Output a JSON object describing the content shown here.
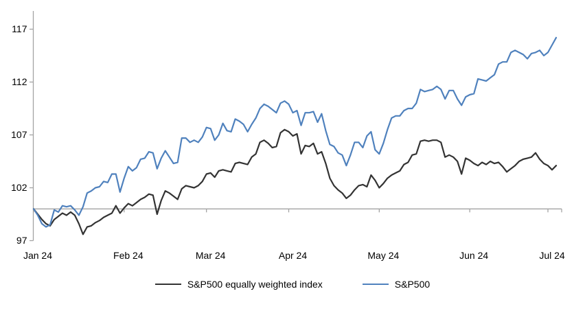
{
  "chart_data": {
    "type": "line",
    "title": "",
    "x_tick_labels": [
      "Jan 24",
      "Feb 24",
      "Mar 24",
      "Apr 24",
      "May 24",
      "Jun 24",
      "Jul 24"
    ],
    "month_tick_indices": [
      0,
      22,
      42,
      62,
      84,
      106,
      125
    ],
    "y_ticks": [
      97,
      102,
      107,
      112,
      117
    ],
    "ylim": [
      97,
      118.8
    ],
    "baseline_value": 100,
    "grid": "off",
    "legend_position": "bottom",
    "axis_color": "#a3a3a3",
    "text_color": "#000000",
    "series": [
      {
        "name": "S&P500 equally weighted index",
        "color": "#333333",
        "values": [
          100,
          99.5,
          99.0,
          98.6,
          98.4,
          99.0,
          99.3,
          99.6,
          99.4,
          99.7,
          99.4,
          98.6,
          97.6,
          98.3,
          98.4,
          98.7,
          98.9,
          99.2,
          99.4,
          99.6,
          100.3,
          99.6,
          100.1,
          100.5,
          100.3,
          100.6,
          100.9,
          101.1,
          101.4,
          101.3,
          99.5,
          100.8,
          101.7,
          101.5,
          101.2,
          100.9,
          101.9,
          102.2,
          102.1,
          102.0,
          102.2,
          102.6,
          103.3,
          103.4,
          103.0,
          103.6,
          103.7,
          103.6,
          103.5,
          104.3,
          104.4,
          104.3,
          104.2,
          104.9,
          105.2,
          106.3,
          106.5,
          106.2,
          105.8,
          105.9,
          107.2,
          107.5,
          107.3,
          106.9,
          107.1,
          105.2,
          106.0,
          105.9,
          106.2,
          105.2,
          105.4,
          104.3,
          102.9,
          102.2,
          101.8,
          101.5,
          101.0,
          101.3,
          101.8,
          102.2,
          102.3,
          102.1,
          103.2,
          102.7,
          102.0,
          102.4,
          102.9,
          103.2,
          103.4,
          103.6,
          104.2,
          104.4,
          105.1,
          105.2,
          106.4,
          106.5,
          106.4,
          106.5,
          106.5,
          106.3,
          104.9,
          105.1,
          104.9,
          104.5,
          103.3,
          104.8,
          104.6,
          104.3,
          104.1,
          104.4,
          104.2,
          104.5,
          104.3,
          104.4,
          104.0,
          103.5,
          103.8,
          104.1,
          104.5,
          104.7,
          104.8,
          104.9,
          105.3,
          104.7,
          104.3,
          104.1,
          103.7,
          104.1
        ]
      },
      {
        "name": "S&P500",
        "color": "#4f81bd",
        "values": [
          100,
          99.4,
          98.6,
          98.3,
          98.5,
          99.9,
          99.7,
          100.3,
          100.2,
          100.3,
          99.9,
          99.4,
          100.2,
          101.5,
          101.7,
          102.0,
          102.1,
          102.6,
          102.5,
          103.3,
          103.3,
          101.6,
          102.9,
          104.0,
          103.6,
          103.9,
          104.7,
          104.8,
          105.4,
          105.3,
          103.8,
          104.8,
          105.5,
          104.9,
          104.3,
          104.4,
          106.7,
          106.7,
          106.3,
          106.5,
          106.3,
          106.8,
          107.7,
          107.6,
          106.5,
          107.0,
          108.1,
          107.4,
          107.3,
          108.5,
          108.3,
          108.0,
          107.3,
          108.0,
          108.6,
          109.5,
          109.9,
          109.7,
          109.4,
          109.1,
          110.0,
          110.2,
          109.9,
          109.1,
          109.3,
          107.9,
          109.1,
          109.1,
          109.2,
          108.2,
          109.0,
          107.4,
          106.1,
          105.9,
          105.3,
          105.1,
          104.1,
          105.1,
          106.3,
          106.3,
          105.8,
          106.9,
          107.3,
          105.6,
          105.2,
          106.2,
          107.5,
          108.6,
          108.8,
          108.8,
          109.3,
          109.5,
          109.5,
          110.0,
          111.3,
          111.1,
          111.2,
          111.3,
          111.6,
          111.3,
          110.4,
          111.2,
          111.2,
          110.4,
          109.8,
          110.6,
          110.8,
          110.9,
          112.3,
          112.2,
          112.1,
          112.4,
          112.7,
          113.7,
          113.9,
          113.9,
          114.8,
          115.0,
          114.8,
          114.6,
          114.2,
          114.7,
          114.8,
          115.0,
          114.5,
          114.8,
          115.5,
          116.2
        ]
      }
    ]
  }
}
